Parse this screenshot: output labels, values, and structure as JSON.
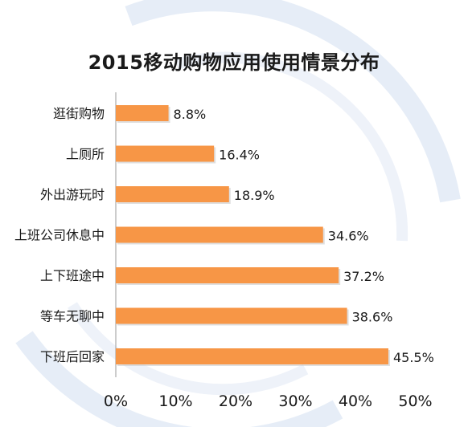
{
  "chart_data": {
    "type": "bar",
    "orientation": "horizontal",
    "title": "2015移动购物应用使用情景分布",
    "categories": [
      "逛街购物",
      "上厕所",
      "外出游玩时",
      "上班公司休息中",
      "上下班途中",
      "等车无聊中",
      "下班后回家"
    ],
    "values": [
      8.8,
      16.4,
      18.9,
      34.6,
      37.2,
      38.6,
      45.5
    ],
    "value_labels": [
      "8.8%",
      "16.4%",
      "18.9%",
      "34.6%",
      "37.2%",
      "38.6%",
      "45.5%"
    ],
    "x_ticks": [
      "0%",
      "10%",
      "20%",
      "30%",
      "40%",
      "50%"
    ],
    "xlim": [
      0,
      50
    ],
    "grid": false,
    "legend": "none",
    "bar_color": "#F79646"
  }
}
